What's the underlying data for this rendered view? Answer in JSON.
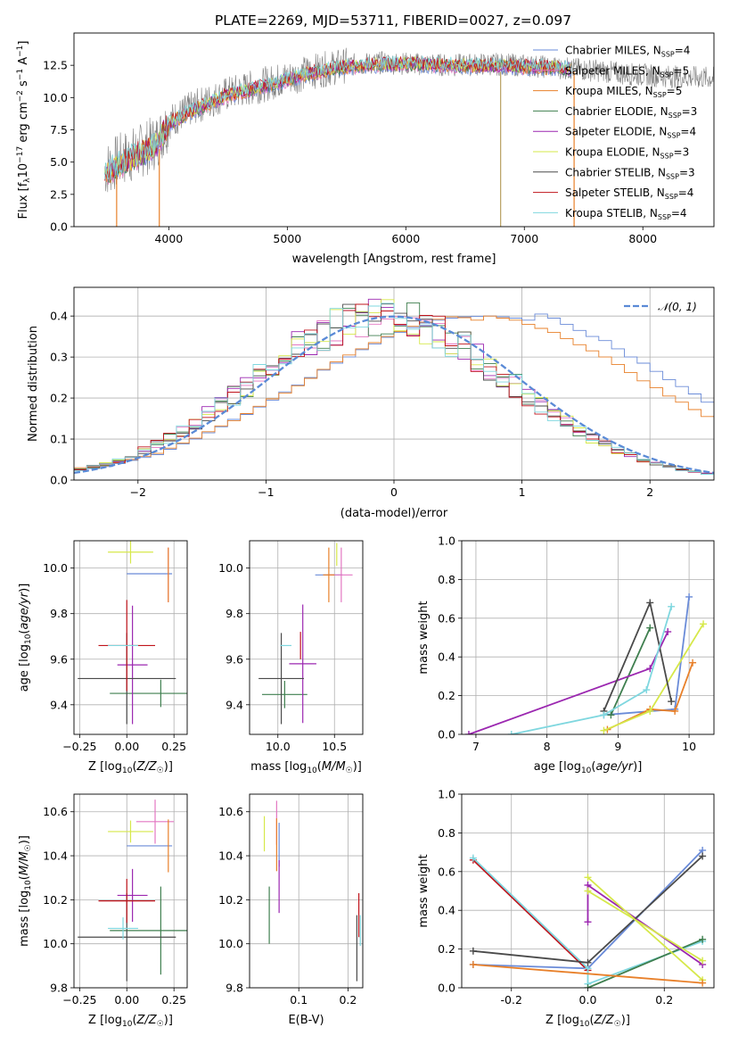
{
  "figure": {
    "title": "PLATE=2269, MJD=53711, FIBERID=0027, z=0.097",
    "colors": {
      "Chabrier MILES": "#6a8bd8",
      "Salpeter MILES": "#e377c2",
      "Kroupa MILES": "#e8802a",
      "Chabrier ELODIE": "#3f7f4f",
      "Salpeter ELODIE": "#9b27b0",
      "Kroupa ELODIE": "#d6e84a",
      "Chabrier STELIB": "#4a4a4a",
      "Salpeter STELIB": "#c0141c",
      "Kroupa STELIB": "#7fd7df",
      "observed": "#808080",
      "normal_curve": "#5a8ad6",
      "grid": "#b0b0b0"
    }
  },
  "chart_data": [
    {
      "id": "spectrum",
      "type": "line",
      "xlabel": "wavelength [Angstrom, rest frame]",
      "ylabel": "Flux [f_λ 10^-17 erg cm^-2 s^-1 A^-1]",
      "xlim": [
        3200,
        8600
      ],
      "ylim": [
        0,
        15
      ],
      "xticks": [
        "4000",
        "5000",
        "6000",
        "7000",
        "8000"
      ],
      "yticks": [
        "0.0",
        "2.5",
        "5.0",
        "7.5",
        "10.0",
        "12.5"
      ],
      "legend_position": "top-right",
      "legend": [
        {
          "model": "Chabrier MILES",
          "n": "4"
        },
        {
          "model": "Salpeter MILES",
          "n": "5"
        },
        {
          "model": "Kroupa MILES",
          "n": "5"
        },
        {
          "model": "Chabrier ELODIE",
          "n": "3"
        },
        {
          "model": "Salpeter ELODIE",
          "n": "4"
        },
        {
          "model": "Kroupa ELODIE",
          "n": "3"
        },
        {
          "model": "Chabrier STELIB",
          "n": "3"
        },
        {
          "model": "Salpeter STELIB",
          "n": "4"
        },
        {
          "model": "Kroupa STELIB",
          "n": "4"
        }
      ],
      "observed_continuum": [
        [
          3460,
          4.4
        ],
        [
          3600,
          5.2
        ],
        [
          3750,
          5.8
        ],
        [
          3900,
          6.6
        ],
        [
          4000,
          8.1
        ],
        [
          4200,
          9.2
        ],
        [
          4500,
          10.3
        ],
        [
          4800,
          11.0
        ],
        [
          5000,
          11.5
        ],
        [
          5200,
          12.0
        ],
        [
          5500,
          12.5
        ],
        [
          5800,
          12.7
        ],
        [
          6100,
          12.6
        ],
        [
          6400,
          12.5
        ],
        [
          6700,
          12.6
        ],
        [
          7000,
          12.5
        ],
        [
          7300,
          12.3
        ],
        [
          7600,
          12.1
        ],
        [
          7900,
          11.8
        ],
        [
          8300,
          11.6
        ],
        [
          8600,
          11.5
        ]
      ],
      "model_continuum": [
        [
          3460,
          4.2
        ],
        [
          3600,
          4.9
        ],
        [
          3750,
          5.6
        ],
        [
          3900,
          6.4
        ],
        [
          4000,
          8.0
        ],
        [
          4200,
          9.0
        ],
        [
          4500,
          10.2
        ],
        [
          4800,
          10.9
        ],
        [
          5000,
          11.4
        ],
        [
          5200,
          11.9
        ],
        [
          5500,
          12.4
        ],
        [
          5800,
          12.6
        ],
        [
          6100,
          12.6
        ],
        [
          6400,
          12.5
        ],
        [
          6700,
          12.5
        ],
        [
          7000,
          12.4
        ],
        [
          7400,
          12.3
        ]
      ],
      "vertical_features": [
        {
          "x": 3560,
          "y0": 0,
          "y1": 4.0
        },
        {
          "x": 3920,
          "y0": 0,
          "y1": 6.0
        },
        {
          "x": 6800,
          "y0": 0,
          "y1": 12.0
        },
        {
          "x": 7420,
          "y0": 0,
          "y1": 12.0
        }
      ]
    },
    {
      "id": "residual_hist",
      "type": "line",
      "xlabel": "(data-model)/error",
      "ylabel": "Normed distribution",
      "xlim": [
        -2.5,
        2.5
      ],
      "ylim": [
        0,
        0.47
      ],
      "xticks": [
        -2,
        -1,
        0,
        1,
        2
      ],
      "yticks": [
        0.0,
        0.1,
        0.2,
        0.3,
        0.4
      ],
      "legend_position": "top-right",
      "legend": [
        {
          "name": "N(0,1)",
          "label_main": "𝒩(0, 1)"
        }
      ],
      "normal_curve": {
        "mu": 0,
        "sigma": 1
      },
      "bin_width": 0.1,
      "bins_from": -2.5,
      "histograms": [
        {
          "model": "Chabrier MILES",
          "values": [
            0.025,
            0.028,
            0.033,
            0.04,
            0.048,
            0.055,
            0.062,
            0.075,
            0.088,
            0.1,
            0.115,
            0.13,
            0.148,
            0.16,
            0.178,
            0.195,
            0.215,
            0.232,
            0.25,
            0.268,
            0.285,
            0.3,
            0.318,
            0.332,
            0.348,
            0.36,
            0.372,
            0.383,
            0.39,
            0.395,
            0.398,
            0.399,
            0.4,
            0.398,
            0.395,
            0.39,
            0.405,
            0.395,
            0.38,
            0.365,
            0.35,
            0.34,
            0.32,
            0.3,
            0.285,
            0.265,
            0.245,
            0.228,
            0.21,
            0.19,
            0.172,
            0.155,
            0.14,
            0.125,
            0.11,
            0.098,
            0.085,
            0.072,
            0.062,
            0.053,
            0.045,
            0.04,
            0.035,
            0.03,
            0.026,
            0.024,
            0.022,
            0.02,
            0.019,
            0.018
          ]
        },
        {
          "model": "Kroupa MILES",
          "values": [
            0.03,
            0.03,
            0.035,
            0.042,
            0.05,
            0.058,
            0.065,
            0.078,
            0.09,
            0.102,
            0.118,
            0.132,
            0.145,
            0.162,
            0.18,
            0.198,
            0.212,
            0.23,
            0.248,
            0.27,
            0.288,
            0.305,
            0.32,
            0.335,
            0.35,
            0.362,
            0.375,
            0.385,
            0.392,
            0.398,
            0.396,
            0.39,
            0.4,
            0.395,
            0.39,
            0.38,
            0.37,
            0.36,
            0.345,
            0.33,
            0.315,
            0.3,
            0.282,
            0.262,
            0.242,
            0.225,
            0.205,
            0.19,
            0.172,
            0.155,
            0.138,
            0.122,
            0.108,
            0.095,
            0.082,
            0.07,
            0.06,
            0.052,
            0.045,
            0.04,
            0.035,
            0.03,
            0.028,
            0.026,
            0.024,
            0.022,
            0.021,
            0.02,
            0.019,
            0.018
          ]
        }
      ]
    },
    {
      "id": "age_vs_Z",
      "type": "scatter",
      "xlabel": "Z [log10(Z/Z☉)]",
      "ylabel": "age [log10(age/yr)]",
      "xlim": [
        -0.28,
        0.32
      ],
      "ylim": [
        9.27,
        10.12
      ],
      "xticks": [
        -0.25,
        0,
        0.25
      ],
      "yticks": [
        9.4,
        9.6,
        9.8,
        10.0
      ],
      "points": [
        {
          "model": "Chabrier MILES",
          "x": 0.12,
          "xerr": 0.12,
          "y": 9.975,
          "yerr": 0.0
        },
        {
          "model": "Salpeter MILES",
          "x": 0.22,
          "xerr": 0.0,
          "y": 9.97,
          "yerr": 0.12
        },
        {
          "model": "Kroupa MILES",
          "x": 0.22,
          "xerr": 0.0,
          "y": 9.97,
          "yerr": 0.12
        },
        {
          "model": "Chabrier ELODIE",
          "x": 0.18,
          "xerr": 0.27,
          "y": 9.45,
          "yerr": 0.06
        },
        {
          "model": "Salpeter ELODIE",
          "x": 0.03,
          "xerr": 0.08,
          "y": 9.575,
          "yerr": 0.26
        },
        {
          "model": "Kroupa ELODIE",
          "x": 0.02,
          "xerr": 0.12,
          "y": 10.07,
          "yerr": 0.05
        },
        {
          "model": "Chabrier STELIB",
          "x": 0.0,
          "xerr": 0.26,
          "y": 9.515,
          "yerr": 0.2
        },
        {
          "model": "Salpeter STELIB",
          "x": 0.0,
          "xerr": 0.15,
          "y": 9.66,
          "yerr": 0.2
        },
        {
          "model": "Kroupa STELIB",
          "x": -0.02,
          "xerr": 0.08,
          "y": 9.66,
          "yerr": 0.0
        }
      ]
    },
    {
      "id": "age_vs_mass",
      "type": "scatter",
      "xlabel": "mass [log10(M/M☉)]",
      "ylabel": "",
      "xlim": [
        9.75,
        10.75
      ],
      "ylim": [
        9.27,
        10.12
      ],
      "xticks": [
        10.0,
        10.5
      ],
      "yticks": [
        9.4,
        9.6,
        9.8,
        10.0
      ],
      "points": [
        {
          "model": "Chabrier MILES",
          "x": 10.45,
          "xerr": 0.12,
          "y": 9.97,
          "yerr": 0.0
        },
        {
          "model": "Salpeter MILES",
          "x": 10.56,
          "xerr": 0.1,
          "y": 9.97,
          "yerr": 0.12
        },
        {
          "model": "Kroupa MILES",
          "x": 10.45,
          "xerr": 0.05,
          "y": 9.97,
          "yerr": 0.12
        },
        {
          "model": "Chabrier ELODIE",
          "x": 10.06,
          "xerr": 0.2,
          "y": 9.445,
          "yerr": 0.06
        },
        {
          "model": "Salpeter ELODIE",
          "x": 10.22,
          "xerr": 0.12,
          "y": 9.58,
          "yerr": 0.26
        },
        {
          "model": "Kroupa ELODIE",
          "x": 10.52,
          "xerr": 0.0,
          "y": 10.06,
          "yerr": 0.05
        },
        {
          "model": "Chabrier STELIB",
          "x": 10.03,
          "xerr": 0.2,
          "y": 9.515,
          "yerr": 0.2
        },
        {
          "model": "Salpeter STELIB",
          "x": 10.2,
          "xerr": 0.0,
          "y": 9.66,
          "yerr": 0.06
        },
        {
          "model": "Kroupa STELIB",
          "x": 10.07,
          "xerr": 0.05,
          "y": 9.66,
          "yerr": 0.0
        }
      ]
    },
    {
      "id": "massweight_vs_age",
      "type": "line",
      "xlabel": "age [log10(age/yr)]",
      "ylabel": "mass weight",
      "xlim": [
        6.8,
        10.35
      ],
      "ylim": [
        0,
        1
      ],
      "xticks": [
        7,
        8,
        9,
        10
      ],
      "yticks": [
        0.0,
        0.2,
        0.4,
        0.6,
        0.8,
        1.0
      ],
      "series": [
        {
          "model": "Chabrier MILES",
          "points": [
            [
              8.8,
              0.1
            ],
            [
              9.8,
              0.13
            ],
            [
              10.0,
              0.71
            ]
          ]
        },
        {
          "model": "Kroupa MILES",
          "points": [
            [
              8.85,
              0.025
            ],
            [
              9.45,
              0.13
            ],
            [
              9.8,
              0.12
            ],
            [
              10.05,
              0.37
            ]
          ]
        },
        {
          "model": "Chabrier ELODIE",
          "points": [
            [
              8.9,
              0.1
            ],
            [
              9.45,
              0.55
            ]
          ]
        },
        {
          "model": "Salpeter ELODIE",
          "points": [
            [
              6.9,
              0.0
            ],
            [
              9.45,
              0.34
            ],
            [
              9.7,
              0.53
            ]
          ]
        },
        {
          "model": "Kroupa ELODIE",
          "points": [
            [
              8.8,
              0.02
            ],
            [
              9.45,
              0.12
            ],
            [
              10.2,
              0.57
            ]
          ]
        },
        {
          "model": "Chabrier STELIB",
          "points": [
            [
              8.8,
              0.12
            ],
            [
              9.45,
              0.68
            ],
            [
              9.75,
              0.17
            ]
          ]
        },
        {
          "model": "Kroupa STELIB",
          "points": [
            [
              7.5,
              0.0
            ],
            [
              8.8,
              0.1
            ],
            [
              9.4,
              0.23
            ],
            [
              9.75,
              0.66
            ]
          ]
        }
      ]
    },
    {
      "id": "mass_vs_Z",
      "type": "scatter",
      "xlabel": "Z [log10(Z/Z☉)]",
      "ylabel": "mass [log10(M/M☉)]",
      "xlim": [
        -0.28,
        0.32
      ],
      "ylim": [
        9.8,
        10.68
      ],
      "xticks": [
        -0.25,
        0,
        0.25
      ],
      "yticks": [
        9.8,
        10.0,
        10.2,
        10.4,
        10.6
      ],
      "points": [
        {
          "model": "Chabrier MILES",
          "x": 0.12,
          "xerr": 0.12,
          "y": 10.445,
          "yerr": 0.0
        },
        {
          "model": "Salpeter MILES",
          "x": 0.15,
          "xerr": 0.1,
          "y": 10.555,
          "yerr": 0.1
        },
        {
          "model": "Kroupa MILES",
          "x": 0.22,
          "xerr": 0.0,
          "y": 10.445,
          "yerr": 0.12
        },
        {
          "model": "Chabrier ELODIE",
          "x": 0.18,
          "xerr": 0.27,
          "y": 10.06,
          "yerr": 0.2
        },
        {
          "model": "Salpeter ELODIE",
          "x": 0.03,
          "xerr": 0.08,
          "y": 10.22,
          "yerr": 0.12
        },
        {
          "model": "Kroupa ELODIE",
          "x": 0.02,
          "xerr": 0.12,
          "y": 10.51,
          "yerr": 0.05
        },
        {
          "model": "Chabrier STELIB",
          "x": 0.0,
          "xerr": 0.26,
          "y": 10.03,
          "yerr": 0.2
        },
        {
          "model": "Salpeter STELIB",
          "x": 0.0,
          "xerr": 0.15,
          "y": 10.195,
          "yerr": 0.1
        },
        {
          "model": "Kroupa STELIB",
          "x": -0.02,
          "xerr": 0.08,
          "y": 10.07,
          "yerr": 0.05
        }
      ]
    },
    {
      "id": "mass_vs_EBV",
      "type": "scatter",
      "xlabel": "E(B-V)",
      "ylabel": "",
      "xlim": [
        0.0,
        0.23
      ],
      "ylim": [
        9.8,
        10.68
      ],
      "xticks": [
        0.1,
        0.2
      ],
      "yticks": [
        9.8,
        10.0,
        10.2,
        10.4,
        10.6
      ],
      "points": [
        {
          "model": "Chabrier MILES",
          "x": 0.06,
          "yerr": 0.1,
          "y": 10.45
        },
        {
          "model": "Salpeter MILES",
          "x": 0.055,
          "yerr": 0.1,
          "y": 10.55
        },
        {
          "model": "Kroupa MILES",
          "x": 0.055,
          "yerr": 0.12,
          "y": 10.45
        },
        {
          "model": "Chabrier ELODIE",
          "x": 0.04,
          "yerr": 0.13,
          "y": 10.13
        },
        {
          "model": "Salpeter ELODIE",
          "x": 0.06,
          "yerr": 0.12,
          "y": 10.26
        },
        {
          "model": "Kroupa ELODIE",
          "x": 0.03,
          "yerr": 0.08,
          "y": 10.5
        },
        {
          "model": "Chabrier STELIB",
          "x": 0.218,
          "yerr": 0.15,
          "y": 9.98
        },
        {
          "model": "Salpeter STELIB",
          "x": 0.222,
          "yerr": 0.1,
          "y": 10.13
        },
        {
          "model": "Kroupa STELIB",
          "x": 0.225,
          "yerr": 0.07,
          "y": 10.06
        }
      ]
    },
    {
      "id": "massweight_vs_Z",
      "type": "line",
      "xlabel": "Z [log10(Z/Z☉)]",
      "ylabel": "mass weight",
      "xlim": [
        -0.33,
        0.33
      ],
      "ylim": [
        0,
        1
      ],
      "xticks": [
        -0.2,
        0.0,
        0.2
      ],
      "yticks": [
        0.0,
        0.2,
        0.4,
        0.6,
        0.8,
        1.0
      ],
      "series": [
        {
          "model": "Chabrier MILES",
          "points": [
            [
              -0.3,
              0.12
            ],
            [
              0.0,
              0.1
            ],
            [
              0.3,
              0.71
            ]
          ]
        },
        {
          "model": "Salpeter STELIB",
          "points": [
            [
              -0.3,
              0.66
            ],
            [
              0.0,
              0.09
            ]
          ]
        },
        {
          "model": "Kroupa STELIB",
          "points": [
            [
              -0.3,
              0.67
            ],
            [
              0.0,
              0.1
            ],
            [
              0.0,
              0.02
            ],
            [
              0.3,
              0.24
            ]
          ]
        },
        {
          "model": "Chabrier ELODIE",
          "points": [
            [
              0.0,
              0.0
            ],
            [
              0.3,
              0.25
            ]
          ]
        },
        {
          "model": "Salpeter ELODIE",
          "points": [
            [
              0.0,
              0.34
            ],
            [
              0.0,
              0.53
            ],
            [
              0.3,
              0.12
            ]
          ]
        },
        {
          "model": "Kroupa ELODIE",
          "points": [
            [
              0.0,
              0.57
            ],
            [
              0.3,
              0.04
            ]
          ]
        },
        {
          "model": "Chabrier STELIB",
          "points": [
            [
              -0.3,
              0.19
            ],
            [
              0.0,
              0.13
            ],
            [
              0.3,
              0.68
            ]
          ]
        },
        {
          "model": "Kroupa MILES",
          "points": [
            [
              -0.3,
              0.12
            ],
            [
              0.3,
              0.025
            ]
          ]
        },
        {
          "model": "Kroupa ELODIE",
          "points": [
            [
              0.0,
              0.5
            ],
            [
              0.3,
              0.14
            ]
          ]
        }
      ]
    }
  ]
}
